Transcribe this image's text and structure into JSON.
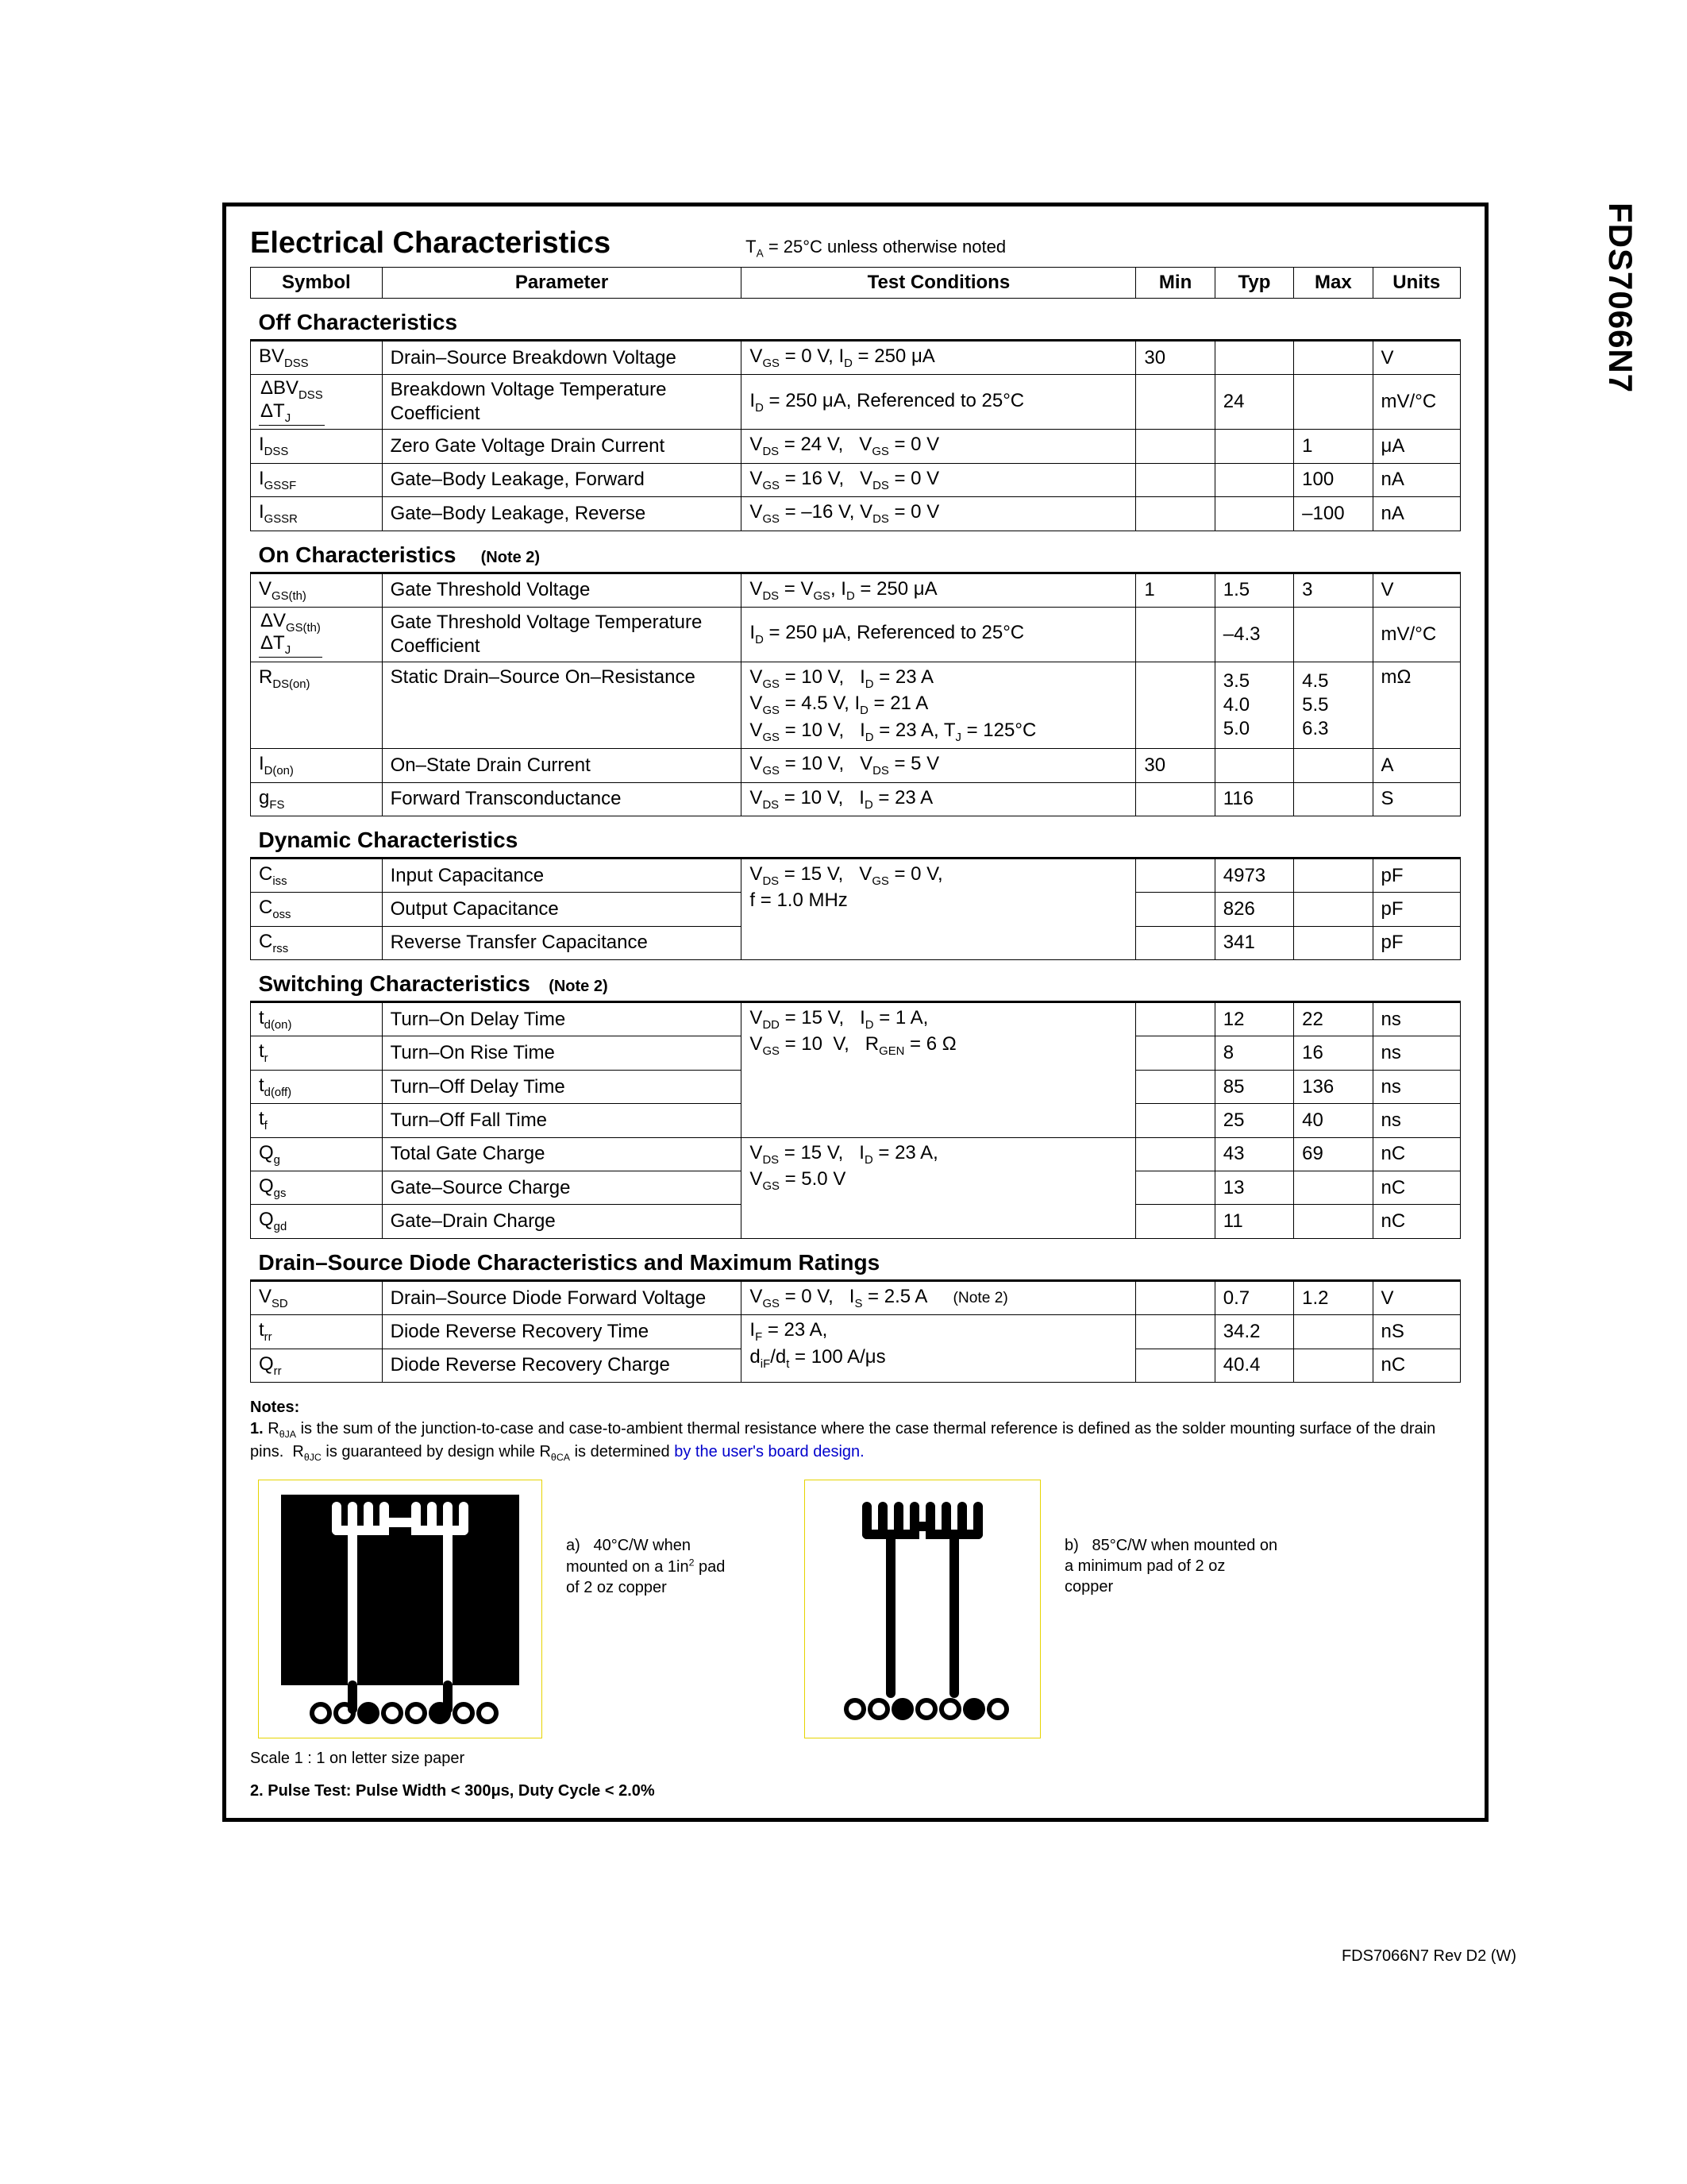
{
  "part_number": "FDS7066N7",
  "title": "Electrical Characteristics",
  "title_note_prefix": "T",
  "title_note_sub": "A",
  "title_note_rest": " = 25°C unless otherwise noted",
  "headers": {
    "symbol": "Symbol",
    "parameter": "Parameter",
    "conditions": "Test Conditions",
    "min": "Min",
    "typ": "Typ",
    "max": "Max",
    "units": "Units"
  },
  "sections": {
    "off": "Off Characteristics",
    "on": "On Characteristics",
    "dyn": "Dynamic Characteristics",
    "sw": "Switching Characteristics",
    "diode": "Drain–Source Diode Characteristics and Maximum Ratings"
  },
  "note2_label": "(Note 2)",
  "off_rows": {
    "bvdss": {
      "sym_html": "BV<sub>DSS</sub>",
      "param": "Drain–Source Breakdown Voltage",
      "cond_html": "V<sub>GS</sub> = 0 V, I<sub>D</sub> = 250 μA",
      "min": "30",
      "typ": "",
      "max": "",
      "units": "V"
    },
    "dbvdss": {
      "sym_html": "ΔBV<sub>DSS</sub><br>ΔT<sub>J</sub>",
      "param": "Breakdown Voltage Temperature Coefficient",
      "cond_html": "I<sub>D</sub> = 250 μA, Referenced to 25°C",
      "min": "",
      "typ": "24",
      "max": "",
      "units": "mV/°C"
    },
    "idss": {
      "sym_html": "I<sub>DSS</sub>",
      "param": "Zero Gate Voltage Drain Current",
      "cond_html": "V<sub>DS</sub> = 24 V, &nbsp; V<sub>GS</sub> = 0 V",
      "min": "",
      "typ": "",
      "max": "1",
      "units": "μA"
    },
    "igssf": {
      "sym_html": "I<sub>GSSF</sub>",
      "param": "Gate–Body Leakage, Forward",
      "cond_html": "V<sub>GS</sub> = 16 V, &nbsp; V<sub>DS</sub> = 0 V",
      "min": "",
      "typ": "",
      "max": "100",
      "units": "nA"
    },
    "igssr": {
      "sym_html": "I<sub>GSSR</sub>",
      "param": "Gate–Body Leakage, Reverse",
      "cond_html": "V<sub>GS</sub> = –16 V, V<sub>DS</sub> = 0 V",
      "min": "",
      "typ": "",
      "max": "–100",
      "units": "nA"
    }
  },
  "on_rows": {
    "vgsth": {
      "sym_html": "V<sub>GS(th)</sub>",
      "param": "Gate Threshold Voltage",
      "cond_html": "V<sub>DS</sub> = V<sub>GS</sub>, I<sub>D</sub> = 250 μA",
      "min": "1",
      "typ": "1.5",
      "max": "3",
      "units": "V"
    },
    "dvgsth": {
      "sym_html": "ΔV<sub>GS(th)</sub><br>ΔT<sub>J</sub>",
      "param": "Gate Threshold Voltage Temperature Coefficient",
      "cond_html": "I<sub>D</sub> = 250 μA, Referenced to 25°C",
      "min": "",
      "typ": "–4.3",
      "max": "",
      "units": "mV/°C"
    },
    "rdson": {
      "sym_html": "R<sub>DS(on)</sub>",
      "param": "Static Drain–Source On–Resistance",
      "cond_html": "V<sub>GS</sub> = 10 V, &nbsp; I<sub>D</sub> = 23 A<br>V<sub>GS</sub> = 4.5 V, I<sub>D</sub> = 21 A<br>V<sub>GS</sub> = 10 V, &nbsp; I<sub>D</sub> = 23 A, T<sub>J</sub> = 125°C",
      "min": "",
      "typ": "3.5<br>4.0<br>5.0",
      "max": "4.5<br>5.5<br>6.3",
      "units": "mΩ"
    },
    "idon": {
      "sym_html": "I<sub>D(on)</sub>",
      "param": "On–State Drain Current",
      "cond_html": "V<sub>GS</sub> = 10 V, &nbsp; V<sub>DS</sub> = 5 V",
      "min": "30",
      "typ": "",
      "max": "",
      "units": "A"
    },
    "gfs": {
      "sym_html": "g<sub>FS</sub>",
      "param": "Forward Transconductance",
      "cond_html": "V<sub>DS</sub> = 10 V, &nbsp; I<sub>D</sub> = 23 A",
      "min": "",
      "typ": "116",
      "max": "",
      "units": "S"
    }
  },
  "dyn_rows": {
    "ciss": {
      "sym_html": "C<sub>iss</sub>",
      "param": "Input Capacitance",
      "typ": "4973",
      "units": "pF"
    },
    "coss": {
      "sym_html": "C<sub>oss</sub>",
      "param": "Output Capacitance",
      "typ": "826",
      "units": "pF"
    },
    "crss": {
      "sym_html": "C<sub>rss</sub>",
      "param": "Reverse Transfer Capacitance",
      "typ": "341",
      "units": "pF"
    },
    "cond_html": "V<sub>DS</sub> = 15 V, &nbsp; V<sub>GS</sub> = 0 V,<br>f = 1.0 MHz"
  },
  "sw_rows": {
    "tdon": {
      "sym_html": "t<sub>d(on)</sub>",
      "param": "Turn–On Delay Time",
      "typ": "12",
      "max": "22",
      "units": "ns"
    },
    "tr": {
      "sym_html": "t<sub>r</sub>",
      "param": "Turn–On Rise Time",
      "typ": "8",
      "max": "16",
      "units": "ns"
    },
    "tdoff": {
      "sym_html": "t<sub>d(off)</sub>",
      "param": "Turn–Off Delay Time",
      "typ": "85",
      "max": "136",
      "units": "ns"
    },
    "tf": {
      "sym_html": "t<sub>f</sub>",
      "param": "Turn–Off Fall Time",
      "typ": "25",
      "max": "40",
      "units": "ns"
    },
    "cond1_html": "V<sub>DD</sub> = 15 V, &nbsp; I<sub>D</sub> = 1 A,<br>V<sub>GS</sub> = 10 &nbsp;V, &nbsp; R<sub>GEN</sub> = 6 Ω",
    "qg": {
      "sym_html": "Q<sub>g</sub>",
      "param": "Total Gate Charge",
      "typ": "43",
      "max": "69",
      "units": "nC"
    },
    "qgs": {
      "sym_html": "Q<sub>gs</sub>",
      "param": "Gate–Source Charge",
      "typ": "13",
      "max": "",
      "units": "nC"
    },
    "qgd": {
      "sym_html": "Q<sub>gd</sub>",
      "param": "Gate–Drain Charge",
      "typ": "11",
      "max": "",
      "units": "nC"
    },
    "cond2_html": "V<sub>DS</sub> = 15 V, &nbsp; I<sub>D</sub> = 23 A,<br>V<sub>GS</sub> = 5.0 V"
  },
  "diode_rows": {
    "vsd": {
      "sym_html": "V<sub>SD</sub>",
      "param": "Drain–Source Diode Forward Voltage",
      "cond_html": "V<sub>GS</sub> = 0 V, &nbsp; I<sub>S</sub> = 2.5 A &nbsp;&nbsp;&nbsp; <span style='font-size:0.8em'>(Note 2)</span>",
      "typ": "0.7",
      "max": "1.2",
      "units": "V"
    },
    "trr": {
      "sym_html": "t<sub>rr</sub>",
      "param": "Diode Reverse Recovery Time",
      "typ": "34.2",
      "max": "",
      "units": "nS"
    },
    "qrr": {
      "sym_html": "Q<sub>rr</sub>",
      "param": "Diode Reverse Recovery Charge",
      "typ": "40.4",
      "max": "",
      "units": "nC"
    },
    "cond2_html": "I<sub>F</sub> = 23 A,<br>d<sub>iF</sub>/d<sub>t</sub> = 100 A/μs"
  },
  "notes": {
    "label": "Notes:",
    "n1_html": "<b>1.</b> R<sub>θJA</sub> is the sum of the junction-to-case and case-to-ambient thermal resistance where the case thermal reference is defined as the solder mounting surface of the drain pins. &nbsp;R<sub>θJC</sub> is guaranteed by design while R<sub>θCA</sub> is determined <span class='note-user'>by the user's board design.</span>",
    "pcb_a_label": "a)",
    "pcb_a_text_html": "40°C/W when<br>mounted on a 1in<sup>2</sup> pad<br>of 2 oz copper",
    "pcb_b_label": "b)",
    "pcb_b_text_html": "85°C/W when mounted on<br>a minimum pad of 2 oz<br>copper",
    "scale": "Scale 1 : 1 on letter size paper",
    "pulse": "2. Pulse Test: Pulse Width < 300μs, Duty Cycle < 2.0%"
  },
  "footer_rev": "FDS7066N7 Rev D2 (W)",
  "colors": {
    "border": "#000000",
    "yellow_frame": "#e6d400",
    "link_blue": "#0000cc",
    "bg": "#ffffff",
    "pcb_bg": "#000000"
  }
}
